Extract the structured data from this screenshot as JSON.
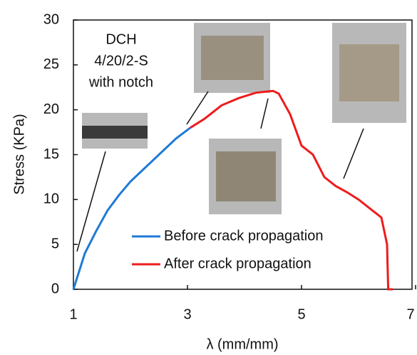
{
  "chart_data": {
    "type": "line",
    "xlabel": "λ (mm/mm)",
    "ylabel": "Stress (KPa)",
    "annotations": [
      "DCH",
      "4/20/2-S",
      "with notch"
    ],
    "xlim": [
      1,
      7
    ],
    "xticks": [
      1,
      3,
      5,
      7
    ],
    "ylim": [
      0,
      30
    ],
    "yticks": [
      0,
      5,
      10,
      15,
      20,
      25,
      30
    ],
    "legend": "lower-center",
    "series": [
      {
        "name": "Before crack propagation",
        "color": "#1f7ad6",
        "x": [
          1,
          1.1,
          1.2,
          1.4,
          1.6,
          1.8,
          2.0,
          2.2,
          2.5,
          2.8,
          3.05
        ],
        "values": [
          0,
          2,
          4,
          6.5,
          8.8,
          10.5,
          12,
          13.2,
          15,
          16.8,
          18
        ]
      },
      {
        "name": "After crack propagation",
        "color": "#ee1c1c",
        "x": [
          3.05,
          3.3,
          3.6,
          3.9,
          4.2,
          4.5,
          4.6,
          4.8,
          5.0,
          5.2,
          5.4,
          5.6,
          5.8,
          6.0,
          6.2,
          6.4,
          6.5,
          6.52,
          6.6
        ],
        "values": [
          18,
          19,
          20.5,
          21.3,
          21.9,
          22.1,
          21.8,
          19.5,
          16,
          15,
          12.5,
          11.5,
          10.8,
          10,
          9,
          8,
          5,
          0,
          0
        ]
      }
    ]
  }
}
